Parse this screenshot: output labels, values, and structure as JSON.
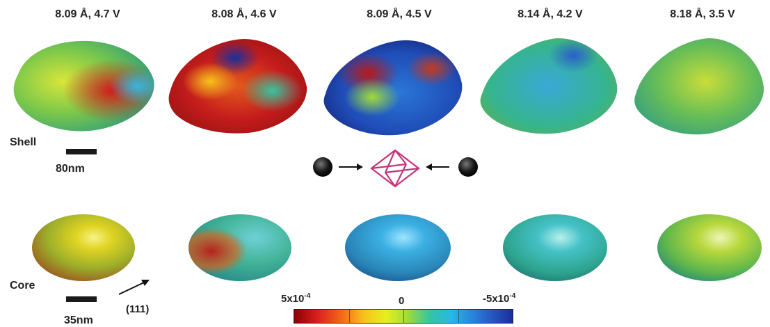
{
  "columns": [
    {
      "title": "8.09 Å, 4.7 V"
    },
    {
      "title": "8.08 Å, 4.6 V"
    },
    {
      "title": "8.09 Å, 4.5 V"
    },
    {
      "title": "8.14 Å, 4.2 V"
    },
    {
      "title": "8.18 Å, 3.5 V"
    }
  ],
  "rows": {
    "shell_label": "Shell",
    "core_label": "Core"
  },
  "scalebars": {
    "shell": "80nm",
    "core": "35nm"
  },
  "direction_label": "(111)",
  "colorbar": {
    "left_base": "5x10",
    "left_exp": "-4",
    "center": "0",
    "right_base": "-5x10",
    "right_exp": "-4"
  },
  "colors": {
    "dark_red": "#8b0000",
    "red": "#d71d1d",
    "yellow": "#e7ef1e",
    "cyan": "#27b8e8",
    "dark_blue": "#1c2d9b",
    "octahedron": "#c8317a"
  }
}
